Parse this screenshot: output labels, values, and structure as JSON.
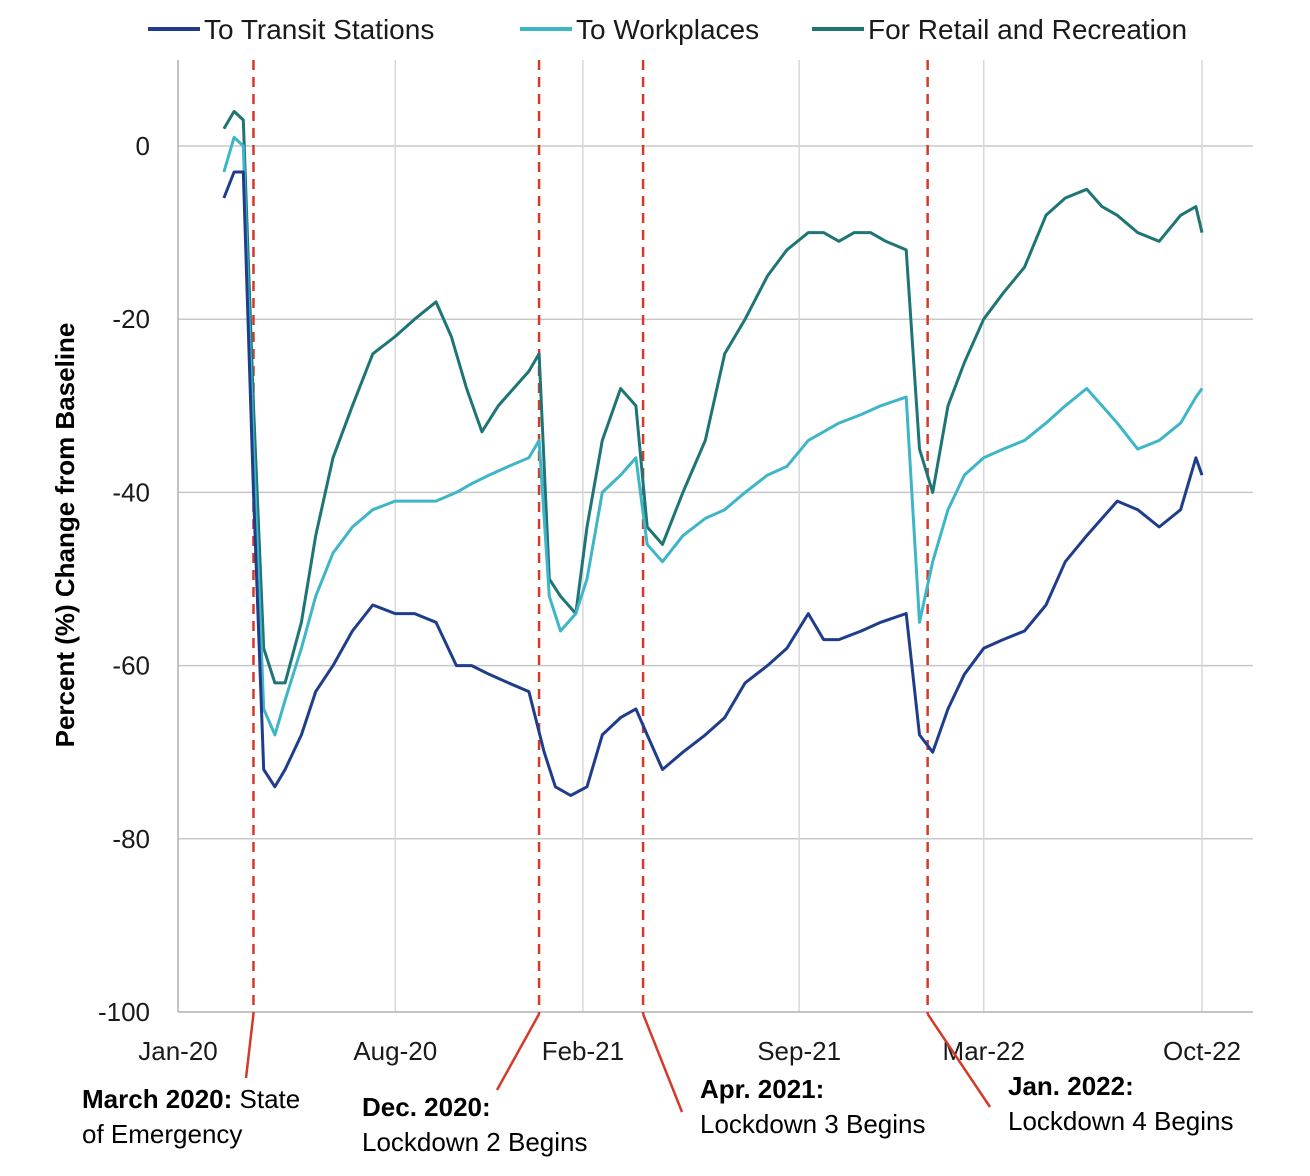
{
  "chart_data": {
    "type": "line",
    "ylabel": "Percent (%) Change from Baseline",
    "xlabel": "",
    "ylim": [
      -100,
      10
    ],
    "yticks": [
      0,
      -20,
      -40,
      -60,
      -80,
      -100
    ],
    "xticks": [
      "Jan-20",
      "Aug-20",
      "Feb-21",
      "Sep-21",
      "Mar-22",
      "Oct-22"
    ],
    "grid": true,
    "legend_position": "top",
    "series": [
      {
        "name": "To Transit Stations",
        "color": "#1f3d8a",
        "x": [
          "2020-02-15",
          "2020-02-25",
          "2020-03-05",
          "2020-03-15",
          "2020-03-25",
          "2020-04-05",
          "2020-04-15",
          "2020-05-01",
          "2020-05-15",
          "2020-06-01",
          "2020-06-20",
          "2020-07-10",
          "2020-08-01",
          "2020-08-20",
          "2020-09-10",
          "2020-09-30",
          "2020-10-15",
          "2020-11-01",
          "2020-11-20",
          "2020-12-10",
          "2020-12-25",
          "2021-01-05",
          "2021-01-20",
          "2021-02-05",
          "2021-02-20",
          "2021-03-10",
          "2021-03-25",
          "2021-04-05",
          "2021-04-20",
          "2021-05-10",
          "2021-06-01",
          "2021-06-20",
          "2021-07-10",
          "2021-08-01",
          "2021-08-20",
          "2021-09-10",
          "2021-09-25",
          "2021-10-10",
          "2021-11-01",
          "2021-11-20",
          "2021-12-15",
          "2021-12-28",
          "2022-01-10",
          "2022-01-25",
          "2022-02-10",
          "2022-03-01",
          "2022-03-20",
          "2022-04-10",
          "2022-05-01",
          "2022-05-20",
          "2022-06-10",
          "2022-06-25",
          "2022-07-10",
          "2022-07-30",
          "2022-08-20",
          "2022-09-10",
          "2022-09-25",
          "2022-10-01"
        ],
        "values": [
          -6,
          -3,
          -3,
          -40,
          -72,
          -74,
          -72,
          -68,
          -63,
          -60,
          -56,
          -53,
          -54,
          -54,
          -55,
          -60,
          -60,
          -61,
          -62,
          -63,
          -70,
          -74,
          -75,
          -74,
          -68,
          -66,
          -65,
          -68,
          -72,
          -70,
          -68,
          -66,
          -62,
          -60,
          -58,
          -54,
          -57,
          -57,
          -56,
          -55,
          -54,
          -68,
          -70,
          -65,
          -61,
          -58,
          -57,
          -56,
          -53,
          -48,
          -45,
          -43,
          -41,
          -42,
          -44,
          -42,
          -36,
          -38
        ]
      },
      {
        "name": "To Workplaces",
        "color": "#3fb6c8",
        "x": [
          "2020-02-15",
          "2020-02-25",
          "2020-03-05",
          "2020-03-15",
          "2020-03-25",
          "2020-04-05",
          "2020-04-15",
          "2020-05-01",
          "2020-05-15",
          "2020-06-01",
          "2020-06-20",
          "2020-07-10",
          "2020-08-01",
          "2020-08-20",
          "2020-09-10",
          "2020-09-30",
          "2020-10-15",
          "2020-11-01",
          "2020-11-20",
          "2020-12-10",
          "2020-12-20",
          "2020-12-30",
          "2021-01-10",
          "2021-01-25",
          "2021-02-05",
          "2021-02-20",
          "2021-03-10",
          "2021-03-25",
          "2021-04-05",
          "2021-04-20",
          "2021-05-10",
          "2021-06-01",
          "2021-06-20",
          "2021-07-10",
          "2021-08-01",
          "2021-08-20",
          "2021-09-10",
          "2021-09-25",
          "2021-10-10",
          "2021-11-01",
          "2021-11-20",
          "2021-12-15",
          "2021-12-28",
          "2022-01-10",
          "2022-01-25",
          "2022-02-10",
          "2022-03-01",
          "2022-03-20",
          "2022-04-10",
          "2022-05-01",
          "2022-05-20",
          "2022-06-10",
          "2022-06-25",
          "2022-07-10",
          "2022-07-30",
          "2022-08-20",
          "2022-09-10",
          "2022-09-25",
          "2022-10-01"
        ],
        "values": [
          -3,
          1,
          0,
          -35,
          -65,
          -68,
          -64,
          -58,
          -52,
          -47,
          -44,
          -42,
          -41,
          -41,
          -41,
          -40,
          -39,
          -38,
          -37,
          -36,
          -34,
          -52,
          -56,
          -54,
          -50,
          -40,
          -38,
          -36,
          -46,
          -48,
          -45,
          -43,
          -42,
          -40,
          -38,
          -37,
          -34,
          -33,
          -32,
          -31,
          -30,
          -29,
          -55,
          -48,
          -42,
          -38,
          -36,
          -35,
          -34,
          -32,
          -30,
          -28,
          -30,
          -32,
          -35,
          -34,
          -32,
          -29,
          -28
        ]
      },
      {
        "name": "For Retail and Recreation",
        "color": "#1e7575",
        "x": [
          "2020-02-15",
          "2020-02-25",
          "2020-03-05",
          "2020-03-15",
          "2020-03-25",
          "2020-04-05",
          "2020-04-15",
          "2020-05-01",
          "2020-05-15",
          "2020-06-01",
          "2020-06-20",
          "2020-07-10",
          "2020-08-01",
          "2020-08-20",
          "2020-09-10",
          "2020-09-25",
          "2020-10-10",
          "2020-10-25",
          "2020-11-10",
          "2020-11-25",
          "2020-12-10",
          "2020-12-20",
          "2020-12-30",
          "2021-01-10",
          "2021-01-25",
          "2021-02-05",
          "2021-02-20",
          "2021-03-10",
          "2021-03-25",
          "2021-04-05",
          "2021-04-20",
          "2021-05-10",
          "2021-06-01",
          "2021-06-20",
          "2021-07-10",
          "2021-08-01",
          "2021-08-20",
          "2021-09-10",
          "2021-09-25",
          "2021-10-10",
          "2021-10-25",
          "2021-11-10",
          "2021-11-25",
          "2021-12-15",
          "2021-12-28",
          "2022-01-10",
          "2022-01-25",
          "2022-02-10",
          "2022-03-01",
          "2022-03-20",
          "2022-04-10",
          "2022-05-01",
          "2022-05-20",
          "2022-06-10",
          "2022-06-25",
          "2022-07-10",
          "2022-07-30",
          "2022-08-20",
          "2022-09-10",
          "2022-09-25",
          "2022-10-01"
        ],
        "values": [
          2,
          4,
          3,
          -30,
          -58,
          -62,
          -62,
          -55,
          -45,
          -36,
          -30,
          -24,
          -22,
          -20,
          -18,
          -22,
          -28,
          -33,
          -30,
          -28,
          -26,
          -24,
          -50,
          -52,
          -54,
          -44,
          -34,
          -28,
          -30,
          -44,
          -46,
          -40,
          -34,
          -24,
          -20,
          -15,
          -12,
          -10,
          -10,
          -11,
          -10,
          -10,
          -11,
          -12,
          -35,
          -40,
          -30,
          -25,
          -20,
          -17,
          -14,
          -8,
          -6,
          -5,
          -7,
          -8,
          -10,
          -11,
          -8,
          -7,
          -10
        ]
      }
    ],
    "annotations": [
      {
        "date": "2020-03-15",
        "bold": "March 2020:",
        "text1": " State",
        "text2": "of Emergency"
      },
      {
        "date": "2020-12-20",
        "bold": "Dec. 2020:",
        "text1": "",
        "text2": "Lockdown 2 Begins"
      },
      {
        "date": "2021-04-01",
        "bold": "Apr. 2021:",
        "text1": "",
        "text2": "Lockdown 3 Begins"
      },
      {
        "date": "2022-01-05",
        "bold": "Jan. 2022:",
        "text1": "",
        "text2": "Lockdown 4 Begins"
      }
    ],
    "line_color_annotation": "#d43a2a"
  }
}
